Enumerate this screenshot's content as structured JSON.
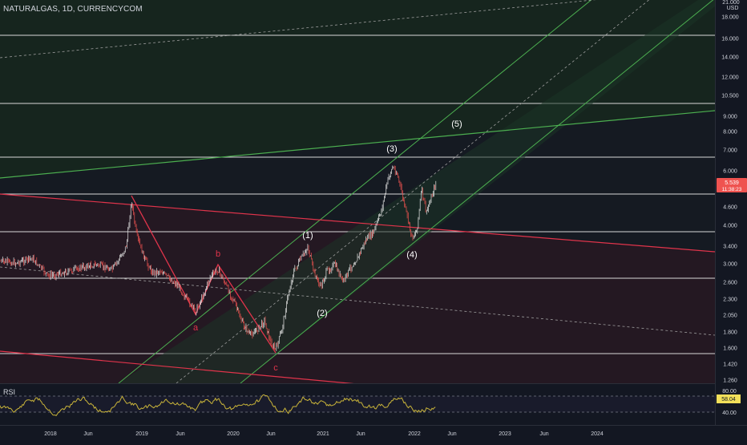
{
  "header": {
    "symbol_line": "NATURALGAS, 1D, CURRENCYCOM"
  },
  "price_axis": {
    "currency": "USD",
    "ticks": [
      "21.000",
      "18.000",
      "16.000",
      "14.000",
      "12.000",
      "10.500",
      "9.000",
      "8.000",
      "7.000",
      "6.000",
      "5.000",
      "4.600",
      "4.000",
      "3.400",
      "3.000",
      "2.600",
      "2.300",
      "2.050",
      "1.800",
      "1.600",
      "1.420",
      "1.260"
    ],
    "last_price": "5.539",
    "countdown": "11:38:23"
  },
  "time_axis": {
    "ticks": [
      "2018",
      "Jun",
      "2019",
      "Jun",
      "2020",
      "Jun",
      "2021",
      "Jun",
      "2022",
      "Jun",
      "2023",
      "Jun",
      "2024"
    ]
  },
  "wave_labels": {
    "a": "a",
    "b": "b",
    "c": "c",
    "w1": "(1)",
    "w2": "(2)",
    "w3": "(3)",
    "w4": "(4)",
    "w5": "(5)"
  },
  "rsi": {
    "label": "RSI",
    "ticks": [
      "80.00",
      "40.00"
    ],
    "value": "58.04"
  },
  "colors": {
    "background": "#131722",
    "candle_up": "#e8e8e8",
    "candle_down": "#ef5350",
    "red_line": "#e0344b",
    "green_line": "#4caf50",
    "rsi_line": "#c9b43a",
    "last_price_badge": "#ef5350",
    "rsi_badge": "#f2e05a"
  }
}
